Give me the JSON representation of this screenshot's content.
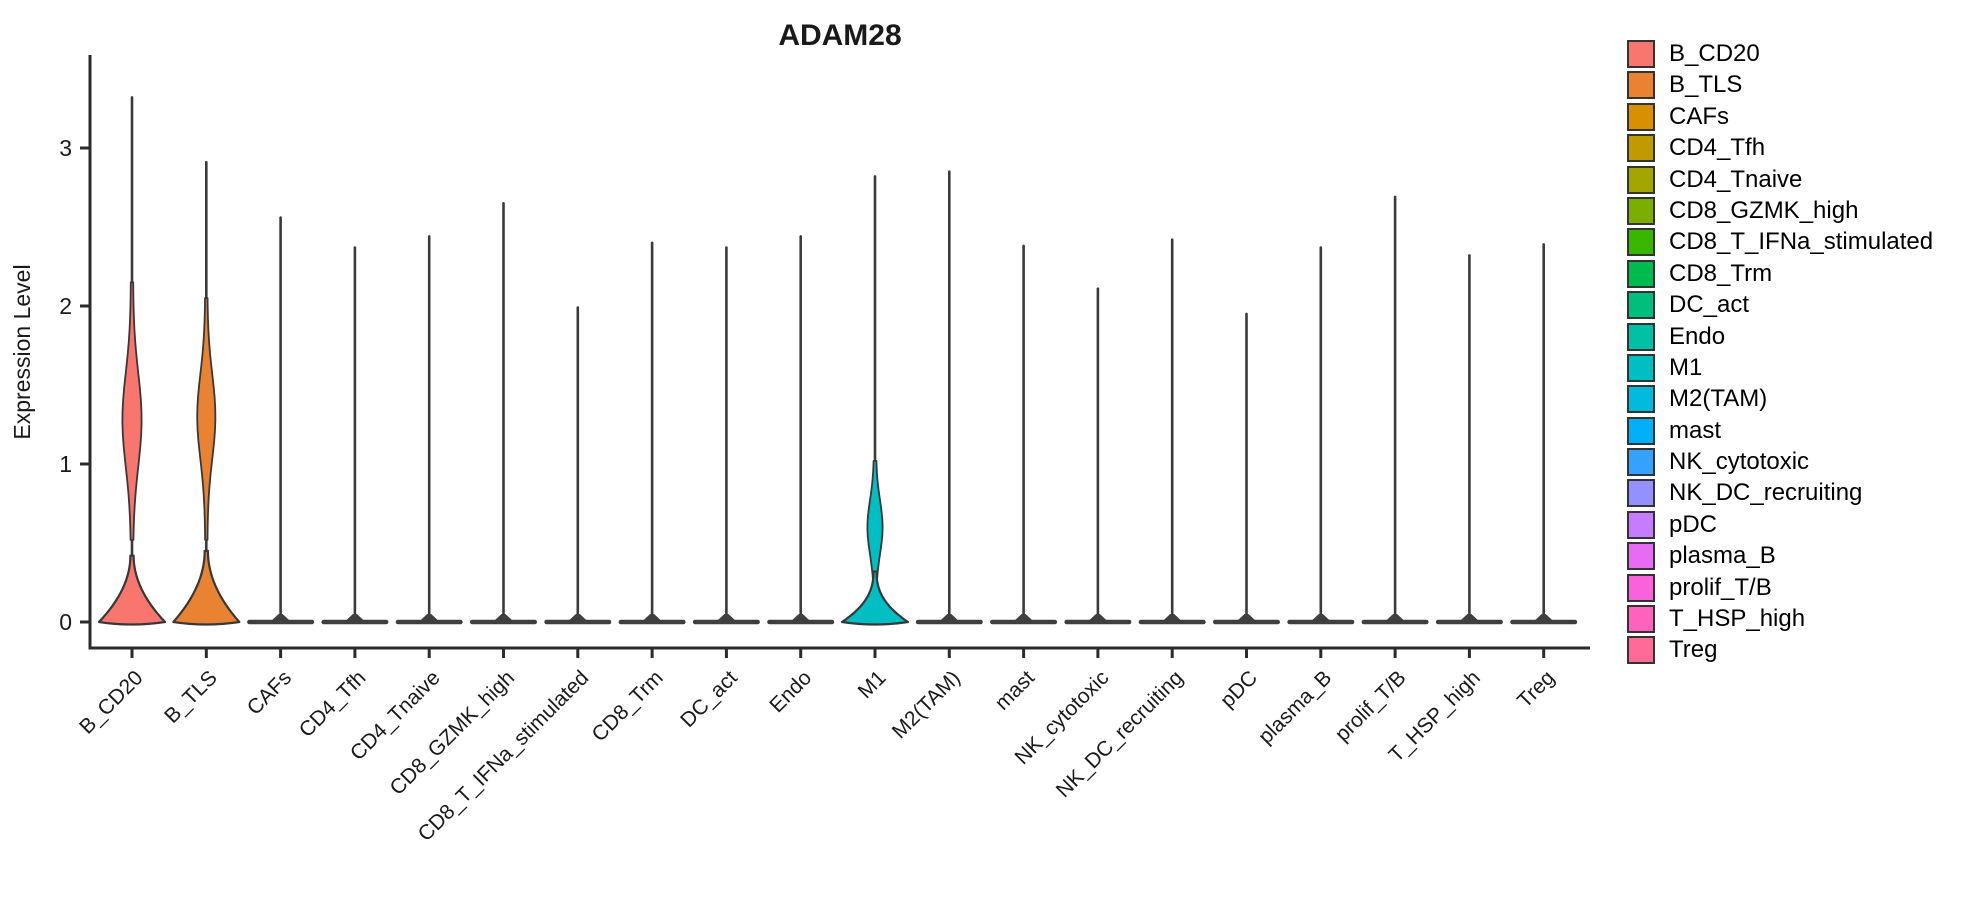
{
  "title": "ADAM28",
  "chart_data": {
    "type": "violin",
    "title": "ADAM28",
    "xlabel": "",
    "ylabel": "Expression Level",
    "yticks": [
      0,
      1,
      2,
      3
    ],
    "ylim": [
      0,
      3.6
    ],
    "grid": false,
    "legend_position": "right",
    "categories": [
      "B_CD20",
      "B_TLS",
      "CAFs",
      "CD4_Tfh",
      "CD4_Tnaive",
      "CD8_GZMK_high",
      "CD8_T_IFNa_stimulated",
      "CD8_Trm",
      "DC_act",
      "Endo",
      "M1",
      "M2(TAM)",
      "mast",
      "NK_cytotoxic",
      "NK_DC_recruiting",
      "pDC",
      "plasma_B",
      "prolif_T/B",
      "T_HSP_high",
      "Treg"
    ],
    "series": [
      {
        "name": "B_CD20",
        "color": "#F8766D",
        "max": 3.32,
        "shape": "bulged",
        "bell": {
          "top": 0.42,
          "power": 2.0
        },
        "spindle": {
          "lo": 0.52,
          "hi": 2.15,
          "center": 1.28,
          "sigma": 0.42,
          "hw": 8.5
        }
      },
      {
        "name": "B_TLS",
        "color": "#EA8331",
        "max": 2.91,
        "shape": "bulged",
        "bell": {
          "top": 0.45,
          "power": 2.0
        },
        "spindle": {
          "lo": 0.52,
          "hi": 2.05,
          "center": 1.3,
          "sigma": 0.38,
          "hw": 8.0
        }
      },
      {
        "name": "CAFs",
        "color": "#D89000",
        "max": 2.56,
        "shape": "flat"
      },
      {
        "name": "CD4_Tfh",
        "color": "#C09B00",
        "max": 2.37,
        "shape": "flat"
      },
      {
        "name": "CD4_Tnaive",
        "color": "#A3A500",
        "max": 2.44,
        "shape": "flat"
      },
      {
        "name": "CD8_GZMK_high",
        "color": "#7CAE00",
        "max": 2.65,
        "shape": "flat"
      },
      {
        "name": "CD8_T_IFNa_stimulated",
        "color": "#39B600",
        "max": 1.99,
        "shape": "flat"
      },
      {
        "name": "CD8_Trm",
        "color": "#00BB4E",
        "max": 2.4,
        "shape": "flat"
      },
      {
        "name": "DC_act",
        "color": "#00BF7D",
        "max": 2.37,
        "shape": "flat"
      },
      {
        "name": "Endo",
        "color": "#00C1A3",
        "max": 2.44,
        "shape": "flat"
      },
      {
        "name": "M1",
        "color": "#00BFC4",
        "max": 2.82,
        "shape": "bulged",
        "bell": {
          "top": 0.32,
          "power": 2.4
        },
        "spindle": {
          "lo": 0.22,
          "hi": 1.02,
          "center": 0.6,
          "sigma": 0.24,
          "hw": 6.5
        }
      },
      {
        "name": "M2(TAM)",
        "color": "#00BAE0",
        "max": 2.85,
        "shape": "flat"
      },
      {
        "name": "mast",
        "color": "#00B0F6",
        "max": 2.38,
        "shape": "flat"
      },
      {
        "name": "NK_cytotoxic",
        "color": "#35A2FF",
        "max": 2.11,
        "shape": "flat"
      },
      {
        "name": "NK_DC_recruiting",
        "color": "#9590FF",
        "max": 2.42,
        "shape": "flat"
      },
      {
        "name": "pDC",
        "color": "#C77CFF",
        "max": 1.95,
        "shape": "flat"
      },
      {
        "name": "plasma_B",
        "color": "#E76BF3",
        "max": 2.37,
        "shape": "flat"
      },
      {
        "name": "prolif_T/B",
        "color": "#FA62DB",
        "max": 2.69,
        "shape": "flat"
      },
      {
        "name": "T_HSP_high",
        "color": "#FF62BC",
        "max": 2.32,
        "shape": "flat"
      },
      {
        "name": "Treg",
        "color": "#FF6A98",
        "max": 2.39,
        "shape": "flat"
      }
    ],
    "style": {
      "outline_color": "#383838",
      "spike_color": "#3a3a3a",
      "axis_color": "#2b2b2b",
      "flat_bar_color": "#3f3f3f"
    }
  }
}
